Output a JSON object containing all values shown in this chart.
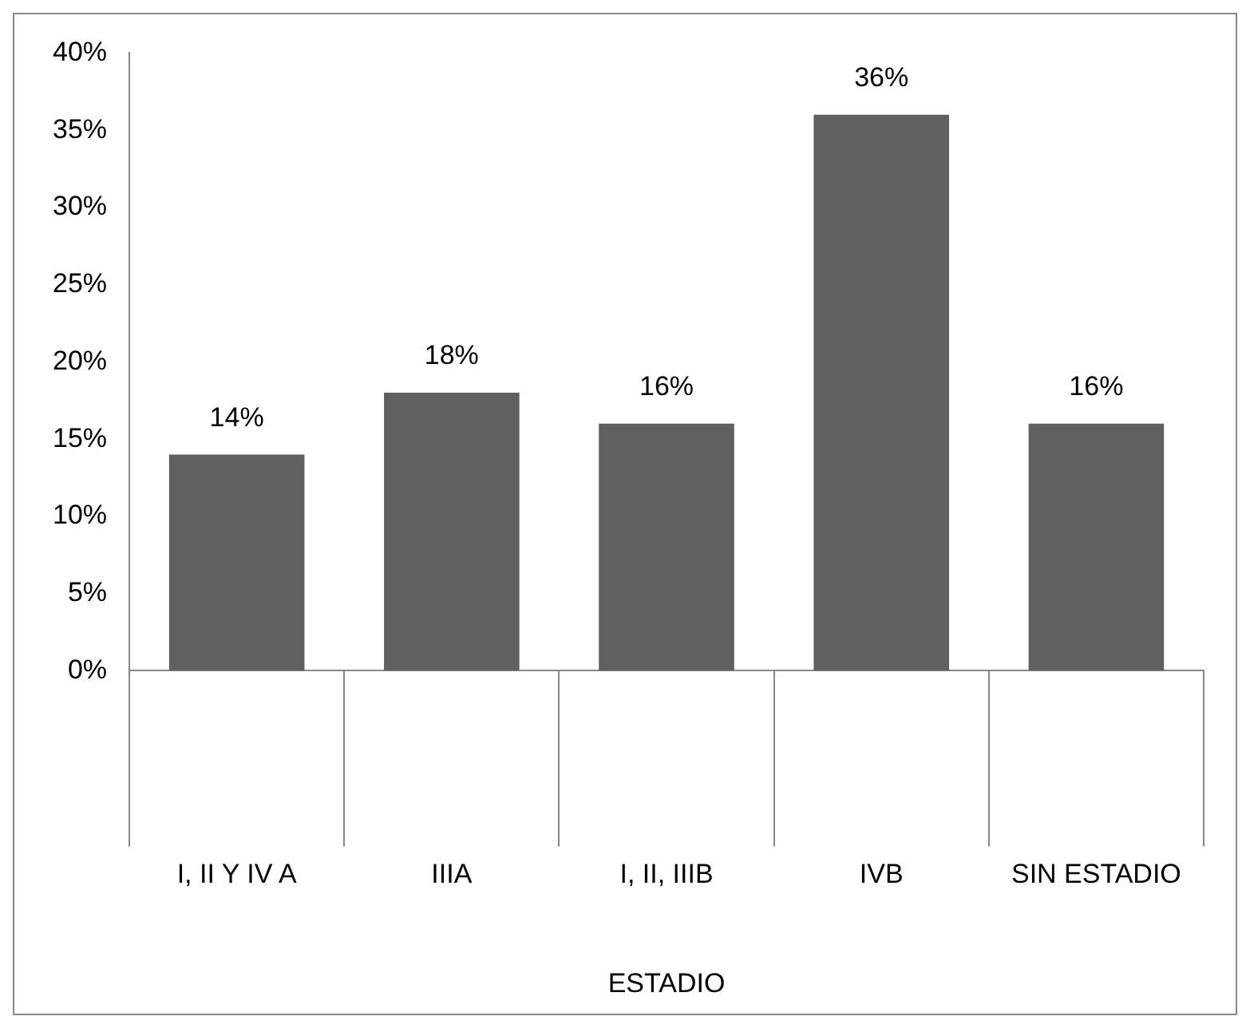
{
  "chart_data": {
    "type": "bar",
    "xlabel": "ESTADIO",
    "categories": [
      "I, II Y IV A",
      "IIIA",
      "I, II, IIIB",
      "IVB",
      "SIN ESTADIO"
    ],
    "values": [
      14,
      18,
      16,
      36,
      16
    ],
    "value_labels": [
      "14%",
      "18%",
      "16%",
      "36%",
      "16%"
    ],
    "color": "#606060",
    "ylim": [
      0,
      40
    ],
    "yticks": [
      {
        "value": 0,
        "label": "0%"
      },
      {
        "value": 5,
        "label": "5%"
      },
      {
        "value": 10,
        "label": "10%"
      },
      {
        "value": 15,
        "label": "15%"
      },
      {
        "value": 20,
        "label": "20%"
      },
      {
        "value": 25,
        "label": "25%"
      },
      {
        "value": 30,
        "label": "30%"
      },
      {
        "value": 35,
        "label": "35%"
      },
      {
        "value": 40,
        "label": "40%"
      }
    ],
    "grid": false,
    "legend": false
  }
}
